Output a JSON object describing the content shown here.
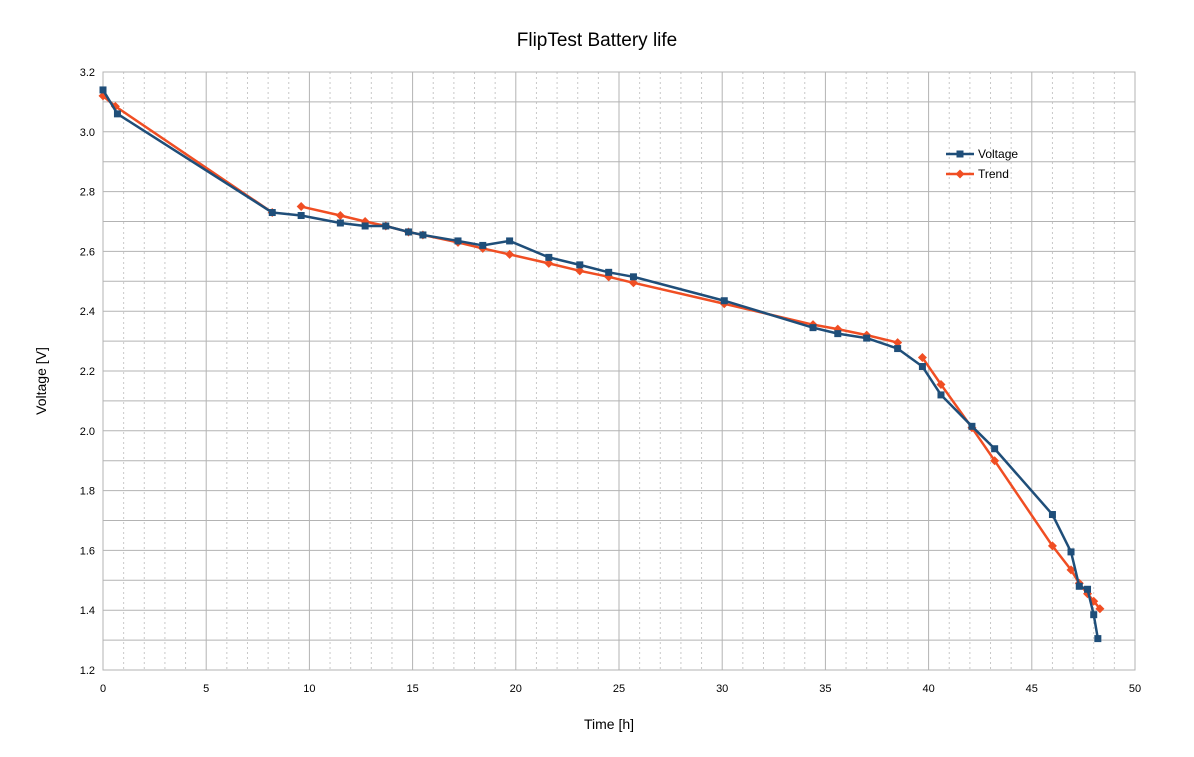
{
  "chart_data": {
    "type": "line",
    "title": "FlipTest Battery life",
    "xlabel": "Time [h]",
    "ylabel": "Voltage [V]",
    "xlim": [
      0,
      50
    ],
    "ylim": [
      1.2,
      3.2
    ],
    "x_ticks": [
      0,
      5,
      10,
      15,
      20,
      25,
      30,
      35,
      40,
      45,
      50
    ],
    "y_ticks": [
      1.2,
      1.4,
      1.6,
      1.8,
      2.0,
      2.2,
      2.4,
      2.6,
      2.8,
      3.0,
      3.2
    ],
    "x_tick_labels": [
      "0",
      "5",
      "10",
      "15",
      "20",
      "25",
      "30",
      "35",
      "40",
      "45",
      "50"
    ],
    "y_tick_labels": [
      "1.2",
      "1.4",
      "1.6",
      "1.8",
      "2.0",
      "2.2",
      "2.4",
      "2.6",
      "2.8",
      "3.0",
      "3.2"
    ],
    "grid": true,
    "minor_grid_x": true,
    "legend_position": "top-right",
    "series": [
      {
        "name": "Voltage",
        "color": "#1f4e79",
        "marker": "square",
        "segments": [
          [
            [
              0.0,
              3.14
            ],
            [
              0.7,
              3.06
            ],
            [
              8.2,
              2.73
            ],
            [
              9.6,
              2.72
            ],
            [
              11.5,
              2.695
            ],
            [
              12.7,
              2.685
            ],
            [
              13.7,
              2.685
            ],
            [
              14.8,
              2.665
            ],
            [
              15.5,
              2.655
            ],
            [
              17.2,
              2.635
            ],
            [
              18.4,
              2.62
            ],
            [
              19.7,
              2.635
            ],
            [
              21.6,
              2.58
            ],
            [
              23.1,
              2.555
            ],
            [
              24.5,
              2.53
            ],
            [
              25.7,
              2.515
            ],
            [
              30.1,
              2.435
            ],
            [
              34.4,
              2.345
            ],
            [
              35.6,
              2.325
            ],
            [
              37.0,
              2.31
            ],
            [
              38.5,
              2.275
            ],
            [
              39.7,
              2.215
            ],
            [
              40.6,
              2.12
            ],
            [
              42.1,
              2.015
            ],
            [
              43.2,
              1.94
            ],
            [
              46.0,
              1.72
            ],
            [
              46.9,
              1.595
            ],
            [
              47.3,
              1.48
            ],
            [
              47.7,
              1.47
            ],
            [
              48.0,
              1.385
            ],
            [
              48.2,
              1.305
            ]
          ]
        ]
      },
      {
        "name": "Trend",
        "color": "#f04e23",
        "marker": "diamond",
        "segments": [
          [
            [
              0.0,
              3.12
            ],
            [
              0.6,
              3.085
            ],
            [
              8.2,
              2.73
            ]
          ],
          [
            [
              9.6,
              2.75
            ],
            [
              11.5,
              2.72
            ],
            [
              12.7,
              2.7
            ],
            [
              13.7,
              2.685
            ],
            [
              14.8,
              2.665
            ],
            [
              15.5,
              2.655
            ],
            [
              17.2,
              2.63
            ],
            [
              18.4,
              2.61
            ],
            [
              19.7,
              2.59
            ],
            [
              21.6,
              2.56
            ],
            [
              23.1,
              2.535
            ],
            [
              24.5,
              2.515
            ],
            [
              25.7,
              2.495
            ],
            [
              30.1,
              2.425
            ],
            [
              34.4,
              2.355
            ],
            [
              35.6,
              2.34
            ],
            [
              37.0,
              2.32
            ],
            [
              38.5,
              2.295
            ]
          ],
          [
            [
              39.7,
              2.245
            ],
            [
              40.6,
              2.155
            ],
            [
              42.1,
              2.01
            ],
            [
              43.2,
              1.9
            ],
            [
              46.0,
              1.615
            ],
            [
              46.9,
              1.535
            ],
            [
              47.3,
              1.49
            ],
            [
              47.7,
              1.455
            ],
            [
              48.0,
              1.43
            ],
            [
              48.3,
              1.405
            ]
          ]
        ]
      }
    ]
  }
}
